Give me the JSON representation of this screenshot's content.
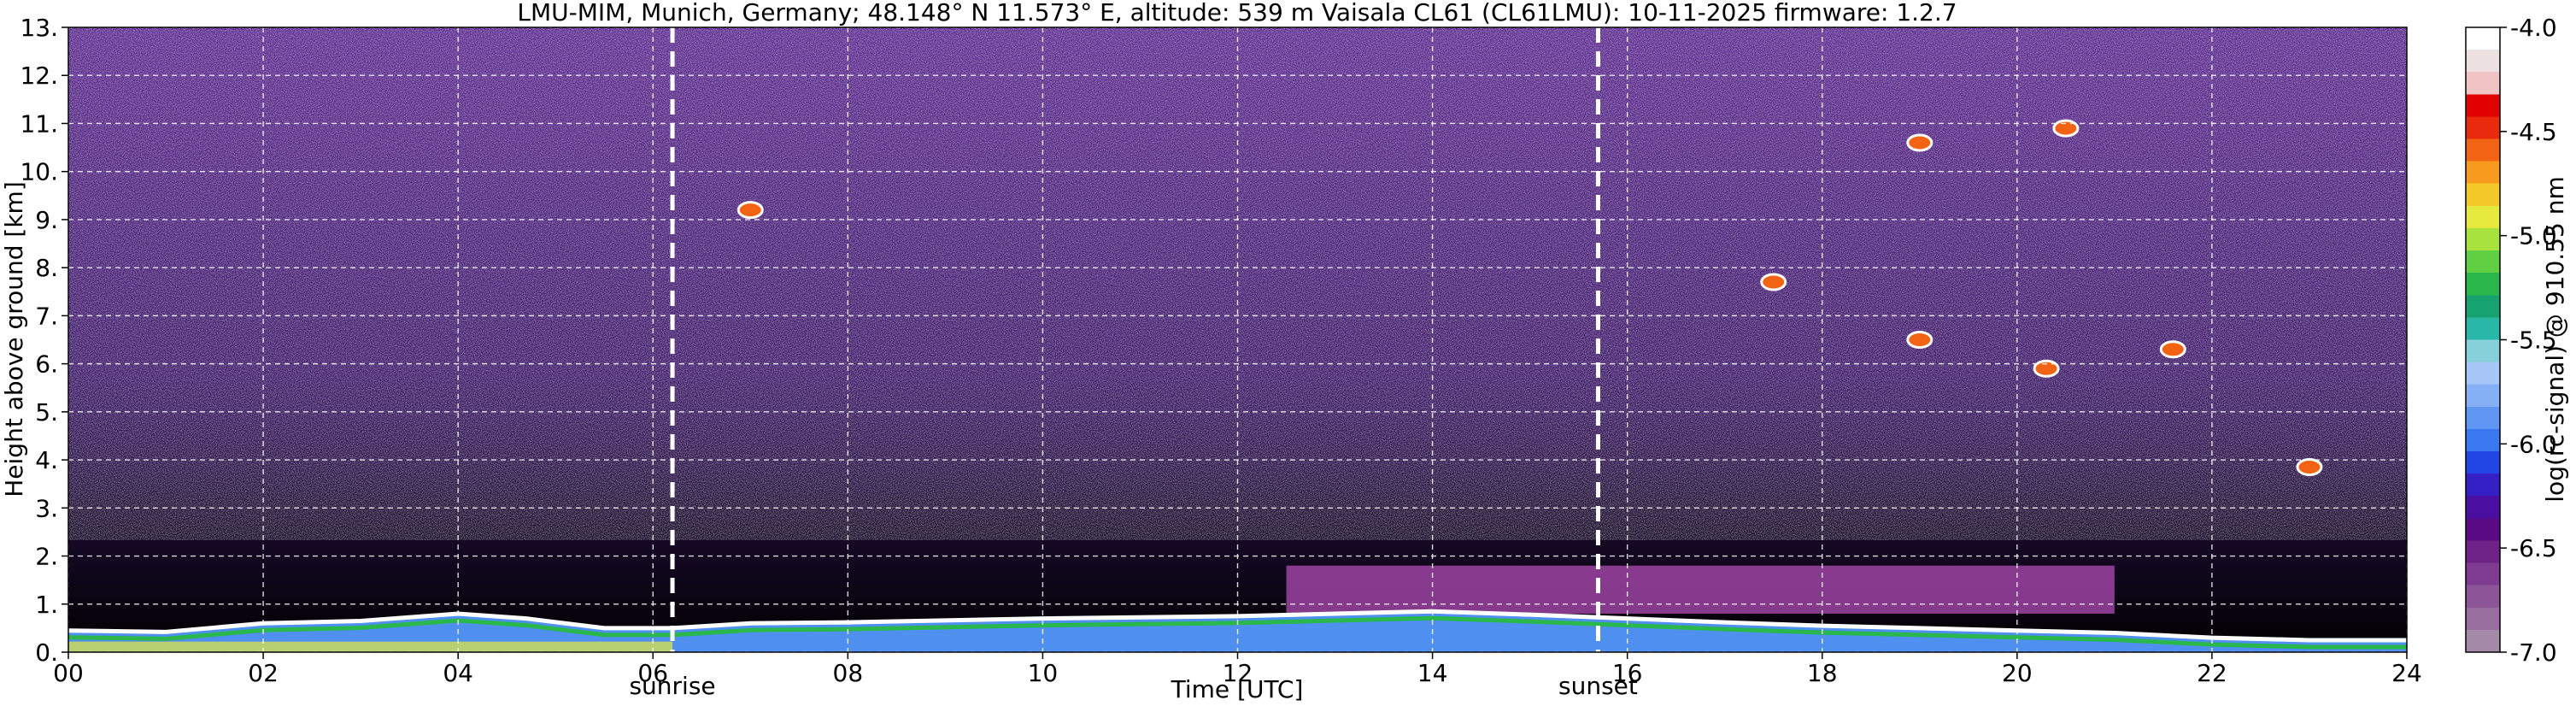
{
  "chart_data": {
    "type": "heatmap",
    "title": "LMU-MIM, Munich, Germany; 48.148° N 11.573° E, altitude: 539 m    Vaisala CL61 (CL61LMU): 10-11-2025    firmware: 1.2.7",
    "xlabel": "Time [UTC]",
    "ylabel": "Height above ground [km]",
    "xlim": [
      0,
      24
    ],
    "ylim": [
      0,
      13
    ],
    "x_tick_labels": [
      "00",
      "02",
      "04",
      "06",
      "08",
      "10",
      "12",
      "14",
      "16",
      "18",
      "20",
      "22",
      "24"
    ],
    "x_tick_values": [
      0,
      2,
      4,
      6,
      8,
      10,
      12,
      14,
      16,
      18,
      20,
      22,
      24
    ],
    "y_tick_labels": [
      "0.",
      "1.",
      "2.",
      "3.",
      "4.",
      "5.",
      "6.",
      "7.",
      "8.",
      "9.",
      "10.",
      "11.",
      "12.",
      "13."
    ],
    "y_tick_values": [
      0,
      1,
      2,
      3,
      4,
      5,
      6,
      7,
      8,
      9,
      10,
      11,
      12,
      13
    ],
    "grid": true,
    "annotations": [
      {
        "label": "sunrise",
        "time_utc": 6.2
      },
      {
        "label": "sunset",
        "time_utc": 15.7
      }
    ],
    "colorbar": {
      "label": "log(rc-signal) @ 910.55 nm",
      "range": [
        -7.0,
        -4.0
      ],
      "tick_labels": [
        "-4.0",
        "-4.5",
        "-5.0",
        "-5.5",
        "-6.0",
        "-6.5",
        "-7.0"
      ],
      "tick_values": [
        -4.0,
        -4.5,
        -5.0,
        -5.5,
        -6.0,
        -6.5,
        -7.0
      ],
      "colors_low_to_high": [
        "#a38aa6",
        "#986f9e",
        "#8c5597",
        "#7f3b90",
        "#6f2389",
        "#5b0a85",
        "#4a0fa0",
        "#3420c4",
        "#2246e6",
        "#3a78ef",
        "#5f96f4",
        "#86b0f5",
        "#a5c6f7",
        "#86d1d9",
        "#29b7a8",
        "#17a371",
        "#2ab74c",
        "#61cf44",
        "#a8e23f",
        "#e6ea3c",
        "#f6c92b",
        "#f79a1d",
        "#f26413",
        "#ea2a0c",
        "#e00000",
        "#f0c4c4",
        "#eee1e1",
        "#ffffff"
      ]
    },
    "features": {
      "boundary_layer_top_km": [
        [
          0,
          0.45
        ],
        [
          1,
          0.42
        ],
        [
          2,
          0.6
        ],
        [
          3,
          0.65
        ],
        [
          4,
          0.8
        ],
        [
          4.7,
          0.7
        ],
        [
          5.5,
          0.5
        ],
        [
          6.2,
          0.5
        ],
        [
          7,
          0.6
        ],
        [
          8,
          0.62
        ],
        [
          10,
          0.7
        ],
        [
          12,
          0.75
        ],
        [
          13,
          0.8
        ],
        [
          14,
          0.85
        ],
        [
          15,
          0.78
        ],
        [
          16,
          0.7
        ],
        [
          17,
          0.62
        ],
        [
          18,
          0.55
        ],
        [
          19,
          0.5
        ],
        [
          20,
          0.45
        ],
        [
          21,
          0.4
        ],
        [
          22,
          0.3
        ],
        [
          23,
          0.25
        ],
        [
          24,
          0.25
        ]
      ],
      "residual_layer_km": {
        "start": 12.5,
        "end": 21.0,
        "base": 0.8,
        "top": 1.8
      },
      "cloud_patches": [
        {
          "time_utc": 7.0,
          "height_km": 9.2
        },
        {
          "time_utc": 17.5,
          "height_km": 7.7
        },
        {
          "time_utc": 19.0,
          "height_km": 6.5
        },
        {
          "time_utc": 20.3,
          "height_km": 5.9
        },
        {
          "time_utc": 21.6,
          "height_km": 6.3
        },
        {
          "time_utc": 19.0,
          "height_km": 10.6
        },
        {
          "time_utc": 20.5,
          "height_km": 10.9
        },
        {
          "time_utc": 23.0,
          "height_km": 3.85
        }
      ]
    }
  }
}
